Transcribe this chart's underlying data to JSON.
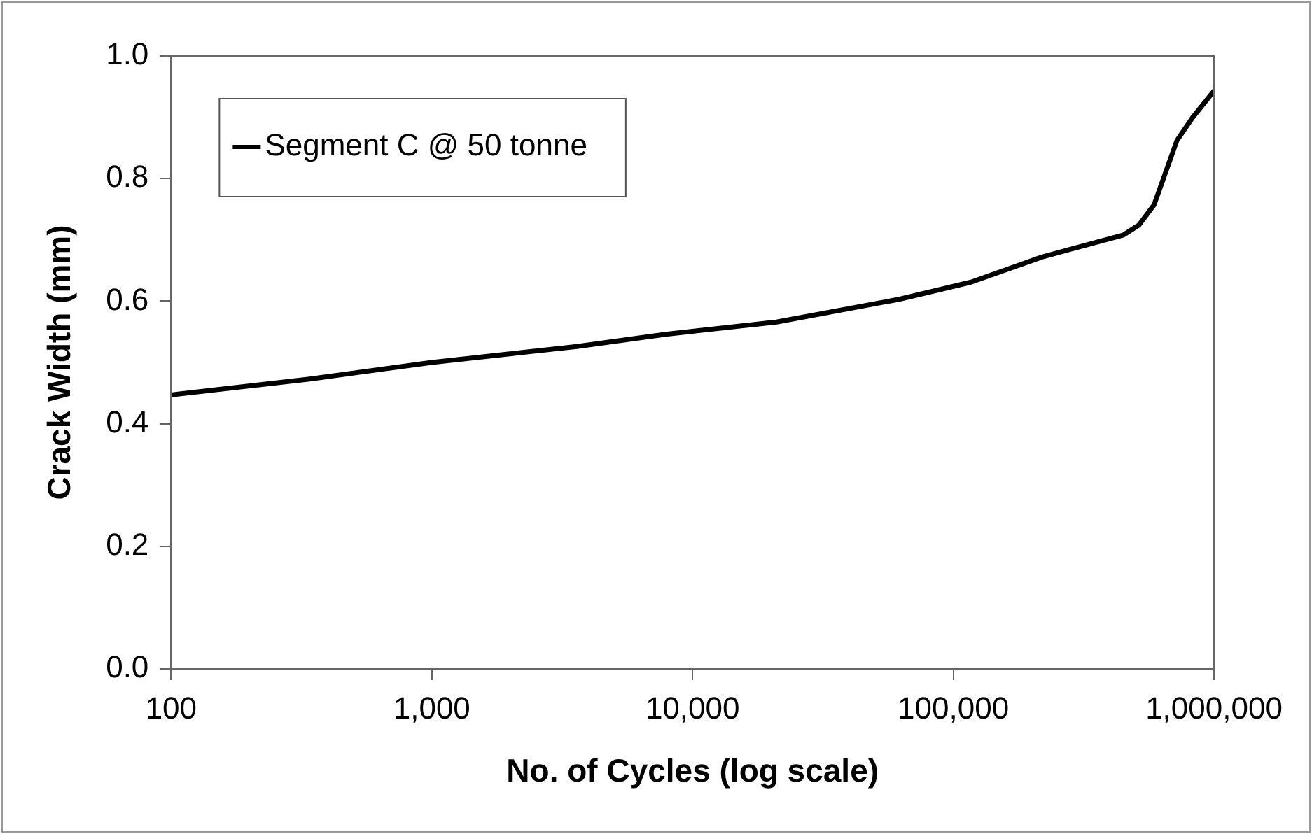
{
  "chart_data": {
    "type": "line",
    "xlabel": "No. of Cycles (log scale)",
    "ylabel": "Crack Width (mm)",
    "log": "x",
    "xlim": [
      100,
      1000000
    ],
    "xticks": [
      100,
      {
        "value": 1000,
        "label": "1,000"
      },
      {
        "value": 10000,
        "label": "10,000"
      },
      {
        "value": 100000,
        "label": "100,000"
      },
      {
        "value": 1000000,
        "label": "1,000,000"
      }
    ],
    "ylim": [
      0,
      1
    ],
    "yticks": [
      {
        "value": 0,
        "label": "0.0"
      },
      {
        "value": 0.2,
        "label": "0.2"
      },
      {
        "value": 0.4,
        "label": "0.4"
      },
      {
        "value": 0.6,
        "label": "0.6"
      },
      {
        "value": 0.8,
        "label": "0.8"
      },
      {
        "value": 1,
        "label": "1.0"
      }
    ],
    "grid": false,
    "legend": "top left",
    "marker": "none",
    "line_style": "solid",
    "series": [
      {
        "name": "Segment C @ 50 tonne",
        "color": "#000000",
        "x": [
          100,
          340,
          1000,
          3600,
          7900,
          21000,
          62000,
          117000,
          219000,
          450000,
          515000,
          589000,
          721000,
          826000,
          1000000
        ],
        "values": [
          0.447,
          0.473,
          0.5,
          0.526,
          0.546,
          0.566,
          0.603,
          0.631,
          0.672,
          0.708,
          0.724,
          0.757,
          0.862,
          0.899,
          0.943
        ]
      }
    ]
  }
}
